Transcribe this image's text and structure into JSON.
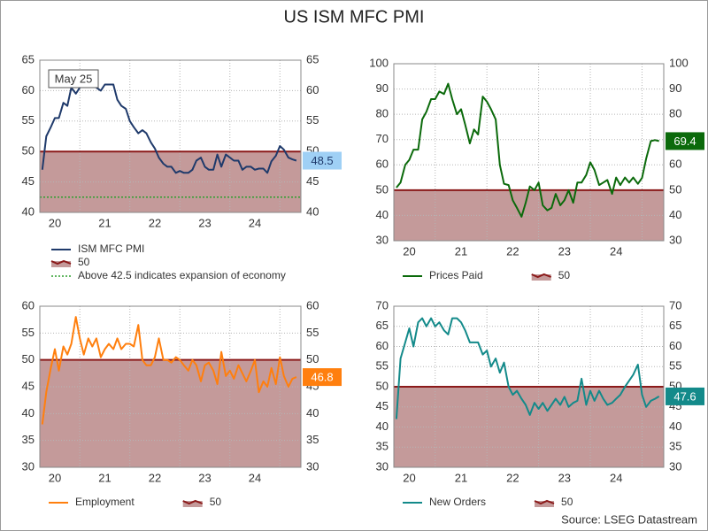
{
  "title": "US ISM MFC PMI",
  "source": "Source: LSEG Datastream",
  "chart_data": [
    {
      "type": "line",
      "x": [
        2020.25,
        2020.33,
        2020.42,
        2020.5,
        2020.58,
        2020.67,
        2020.75,
        2020.83,
        2020.92,
        2021.0,
        2021.08,
        2021.17,
        2021.25,
        2021.33,
        2021.42,
        2021.5,
        2021.58,
        2021.67,
        2021.75,
        2021.83,
        2021.92,
        2022.0,
        2022.08,
        2022.17,
        2022.25,
        2022.33,
        2022.42,
        2022.5,
        2022.58,
        2022.67,
        2022.75,
        2022.83,
        2022.92,
        2023.0,
        2023.08,
        2023.17,
        2023.25,
        2023.33,
        2023.42,
        2023.5,
        2023.58,
        2023.67,
        2023.75,
        2023.83,
        2023.92,
        2024.0,
        2024.08,
        2024.17,
        2024.25,
        2024.33,
        2024.42,
        2024.5,
        2024.58,
        2024.67,
        2024.75,
        2024.83,
        2024.92,
        2025.0,
        2025.08,
        2025.17,
        2025.25,
        2025.33
      ],
      "series": [
        {
          "name": "ISM MFC PMI",
          "color": "#1f3a6b",
          "label_color": "#9fd0f5",
          "label_text_color": "#1f3a6b",
          "values": [
            47,
            52.5,
            54,
            55.5,
            55.5,
            58,
            57.5,
            60.5,
            59.5,
            60.5,
            61.5,
            62.5,
            61.5,
            60.5,
            60,
            61,
            61,
            61,
            58.5,
            57.5,
            57,
            55,
            54,
            53,
            53.5,
            53,
            51.5,
            50.5,
            49,
            48,
            47.5,
            47.5,
            46.5,
            46.8,
            46.5,
            46.5,
            47,
            48.5,
            49,
            47.5,
            47,
            47,
            49.5,
            47.5,
            49.5,
            49,
            48.5,
            48.5,
            47,
            47.5,
            47.5,
            47,
            47.2,
            47.2,
            46.5,
            48.4,
            49.3,
            50.9,
            50.3,
            49,
            48.7,
            48.5
          ]
        }
      ],
      "xlim": [
        2020.2,
        2025.42
      ],
      "xticks": [
        {
          "value": 2020.5,
          "label": "20"
        },
        {
          "value": 2021.5,
          "label": "21"
        },
        {
          "value": 2022.5,
          "label": "22"
        },
        {
          "value": 2023.5,
          "label": "23"
        },
        {
          "value": 2024.5,
          "label": "24"
        }
      ],
      "xgrid": [
        2021,
        2022,
        2023,
        2024,
        2025
      ],
      "ylim": [
        40,
        65
      ],
      "yticks": [
        40,
        45,
        50,
        55,
        60,
        65
      ],
      "grid": true,
      "reference_lines": [
        {
          "name": "50",
          "value": 50,
          "color": "#8b1a1a",
          "fill": "#c49a9a"
        },
        {
          "name": "Above 42.5 indicates expansion of economy",
          "value": 42.5,
          "color": "#2e9e2e",
          "style": "dotted"
        }
      ],
      "annotation": "May 25",
      "legend": "bottom"
    },
    {
      "type": "line",
      "x": [
        2020.25,
        2020.33,
        2020.42,
        2020.5,
        2020.58,
        2020.67,
        2020.75,
        2020.83,
        2020.92,
        2021.0,
        2021.08,
        2021.17,
        2021.25,
        2021.33,
        2021.42,
        2021.5,
        2021.58,
        2021.67,
        2021.75,
        2021.83,
        2021.92,
        2022.0,
        2022.08,
        2022.17,
        2022.25,
        2022.33,
        2022.42,
        2022.5,
        2022.58,
        2022.67,
        2022.75,
        2022.83,
        2022.92,
        2023.0,
        2023.08,
        2023.17,
        2023.25,
        2023.33,
        2023.42,
        2023.5,
        2023.58,
        2023.67,
        2023.75,
        2023.83,
        2023.92,
        2024.0,
        2024.08,
        2024.17,
        2024.25,
        2024.33,
        2024.42,
        2024.5,
        2024.58,
        2024.67,
        2024.75,
        2024.83,
        2024.92,
        2025.0,
        2025.08,
        2025.17,
        2025.25,
        2025.33
      ],
      "series": [
        {
          "name": "Prices Paid",
          "color": "#0b6a0b",
          "label_color": "#0b6a0b",
          "label_text_color": "#ffffff",
          "values": [
            51,
            53,
            60,
            62,
            66,
            66,
            78,
            81,
            86,
            86,
            89,
            88,
            92.1,
            86,
            80,
            82,
            76,
            68.5,
            74,
            72,
            87,
            85,
            82,
            78,
            60,
            52.5,
            52,
            46,
            43,
            39.5,
            45,
            51.5,
            50,
            53,
            44,
            42,
            43,
            48.5,
            44,
            46,
            50,
            45,
            53,
            53,
            56,
            61,
            58,
            52,
            53,
            54,
            48.5,
            55,
            52,
            55,
            53,
            55,
            52.5,
            54.9,
            62.4,
            69.4,
            69.8,
            69.4
          ]
        }
      ],
      "xlim": [
        2020.2,
        2025.42
      ],
      "xticks": [
        {
          "value": 2020.5,
          "label": "20"
        },
        {
          "value": 2021.5,
          "label": "21"
        },
        {
          "value": 2022.5,
          "label": "22"
        },
        {
          "value": 2023.5,
          "label": "23"
        },
        {
          "value": 2024.5,
          "label": "24"
        }
      ],
      "xgrid": [
        2021,
        2022,
        2023,
        2024,
        2025
      ],
      "ylim": [
        30,
        100
      ],
      "yticks": [
        30,
        40,
        50,
        60,
        70,
        80,
        90,
        100
      ],
      "grid": true,
      "reference_lines": [
        {
          "name": "50",
          "value": 50,
          "color": "#8b1a1a",
          "fill": "#c49a9a"
        }
      ],
      "legend": "bottom"
    },
    {
      "type": "line",
      "x": [
        2020.25,
        2020.33,
        2020.42,
        2020.5,
        2020.58,
        2020.67,
        2020.75,
        2020.83,
        2020.92,
        2021.0,
        2021.08,
        2021.17,
        2021.25,
        2021.33,
        2021.42,
        2021.5,
        2021.58,
        2021.67,
        2021.75,
        2021.83,
        2021.92,
        2022.0,
        2022.08,
        2022.17,
        2022.25,
        2022.33,
        2022.42,
        2022.5,
        2022.58,
        2022.67,
        2022.75,
        2022.83,
        2022.92,
        2023.0,
        2023.08,
        2023.17,
        2023.25,
        2023.33,
        2023.42,
        2023.5,
        2023.58,
        2023.67,
        2023.75,
        2023.83,
        2023.92,
        2024.0,
        2024.08,
        2024.17,
        2024.25,
        2024.33,
        2024.42,
        2024.5,
        2024.58,
        2024.67,
        2024.75,
        2024.83,
        2024.92,
        2025.0,
        2025.08,
        2025.17,
        2025.25,
        2025.33
      ],
      "series": [
        {
          "name": "Employment",
          "color": "#ff7f0e",
          "label_color": "#ff7f0e",
          "label_text_color": "#ffffff",
          "values": [
            38,
            44,
            48.5,
            52,
            48,
            52.5,
            51,
            53,
            58,
            54,
            51,
            54,
            52.5,
            54,
            50.5,
            52,
            53,
            52,
            54,
            52,
            53,
            53,
            52.5,
            56.5,
            50,
            49,
            49,
            50.5,
            54,
            50,
            50,
            49.5,
            50.5,
            50,
            49,
            48,
            50,
            49,
            46,
            49,
            49.5,
            48,
            45.5,
            51.5,
            47,
            48,
            46.5,
            49,
            47.5,
            46,
            48,
            50,
            44,
            46,
            45,
            48.5,
            45.5,
            50.5,
            47,
            45,
            46.5,
            46.8
          ]
        }
      ],
      "xlim": [
        2020.2,
        2025.42
      ],
      "xticks": [
        {
          "value": 2020.5,
          "label": "20"
        },
        {
          "value": 2021.5,
          "label": "21"
        },
        {
          "value": 2022.5,
          "label": "22"
        },
        {
          "value": 2023.5,
          "label": "23"
        },
        {
          "value": 2024.5,
          "label": "24"
        }
      ],
      "xgrid": [
        2021,
        2022,
        2023,
        2024,
        2025
      ],
      "ylim": [
        30,
        60
      ],
      "yticks": [
        30,
        35,
        40,
        45,
        50,
        55,
        60
      ],
      "grid": true,
      "reference_lines": [
        {
          "name": "50",
          "value": 50,
          "color": "#8b1a1a",
          "fill": "#c49a9a"
        }
      ],
      "legend": "bottom"
    },
    {
      "type": "line",
      "x": [
        2020.25,
        2020.33,
        2020.42,
        2020.5,
        2020.58,
        2020.67,
        2020.75,
        2020.83,
        2020.92,
        2021.0,
        2021.08,
        2021.17,
        2021.25,
        2021.33,
        2021.42,
        2021.5,
        2021.58,
        2021.67,
        2021.75,
        2021.83,
        2021.92,
        2022.0,
        2022.08,
        2022.17,
        2022.25,
        2022.33,
        2022.42,
        2022.5,
        2022.58,
        2022.67,
        2022.75,
        2022.83,
        2022.92,
        2023.0,
        2023.08,
        2023.17,
        2023.25,
        2023.33,
        2023.42,
        2023.5,
        2023.58,
        2023.67,
        2023.75,
        2023.83,
        2023.92,
        2024.0,
        2024.08,
        2024.17,
        2024.25,
        2024.33,
        2024.42,
        2024.5,
        2024.58,
        2024.67,
        2024.75,
        2024.83,
        2024.92,
        2025.0,
        2025.08,
        2025.17,
        2025.25,
        2025.33
      ],
      "series": [
        {
          "name": "New Orders",
          "color": "#138a8a",
          "label_color": "#138a8a",
          "label_text_color": "#ffffff",
          "values": [
            42,
            57,
            61,
            64.5,
            60,
            66,
            67,
            65,
            67,
            65,
            66,
            64,
            63,
            67,
            67,
            66,
            64,
            61,
            61,
            61,
            58,
            59,
            55,
            57,
            53.5,
            56,
            50,
            48,
            49,
            47,
            45.5,
            43,
            46,
            44.5,
            46,
            44,
            45.5,
            47,
            45.5,
            47.5,
            45,
            46,
            46.5,
            52,
            45.5,
            49,
            46.5,
            49,
            47,
            45.5,
            46,
            47,
            48,
            50,
            51.5,
            53,
            55.5,
            48,
            45,
            46.5,
            47,
            47.6
          ]
        }
      ],
      "xlim": [
        2020.2,
        2025.42
      ],
      "xticks": [
        {
          "value": 2020.5,
          "label": "20"
        },
        {
          "value": 2021.5,
          "label": "21"
        },
        {
          "value": 2022.5,
          "label": "22"
        },
        {
          "value": 2023.5,
          "label": "23"
        },
        {
          "value": 2024.5,
          "label": "24"
        }
      ],
      "xgrid": [
        2021,
        2022,
        2023,
        2024,
        2025
      ],
      "ylim": [
        30,
        70
      ],
      "yticks": [
        30,
        35,
        40,
        45,
        50,
        55,
        60,
        65,
        70
      ],
      "grid": true,
      "reference_lines": [
        {
          "name": "50",
          "value": 50,
          "color": "#8b1a1a",
          "fill": "#c49a9a"
        }
      ],
      "legend": "bottom"
    }
  ]
}
